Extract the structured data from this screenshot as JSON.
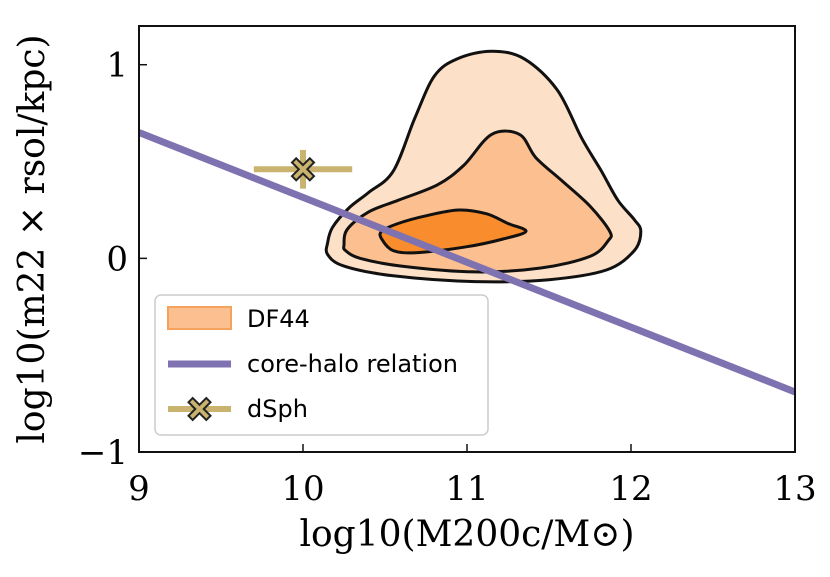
{
  "chart_data": {
    "type": "contour",
    "title": "",
    "xlabel": "log10(M200c/M⊙)",
    "ylabel": "log10(m22 × rsol/kpc)",
    "xlim": [
      9,
      13
    ],
    "ylim": [
      -1,
      1.2
    ],
    "x_ticks": [
      9,
      10,
      11,
      12,
      13
    ],
    "x_tick_labels": [
      "9",
      "10",
      "11",
      "12",
      "13"
    ],
    "y_ticks": [
      -1,
      0,
      1
    ],
    "y_tick_labels": [
      "−1",
      "0",
      "1"
    ],
    "grid": false,
    "legend_position": "lower-left",
    "colors": {
      "contour_outer": "#fde0c8",
      "contour_mid": "#fcbf8f",
      "contour_inner": "#f98c2c",
      "contour_edge": "#111111",
      "relation_line": "#7f72b0",
      "dsph": "#c9b36f"
    },
    "contours": [
      {
        "level": "outer",
        "points": [
          [
            10.15,
            0.08
          ],
          [
            10.18,
            0.16
          ],
          [
            10.28,
            0.26
          ],
          [
            10.4,
            0.34
          ],
          [
            10.55,
            0.45
          ],
          [
            10.68,
            0.72
          ],
          [
            10.8,
            0.94
          ],
          [
            10.94,
            1.03
          ],
          [
            11.15,
            1.07
          ],
          [
            11.35,
            1.03
          ],
          [
            11.55,
            0.87
          ],
          [
            11.7,
            0.62
          ],
          [
            11.82,
            0.45
          ],
          [
            11.92,
            0.3
          ],
          [
            12.02,
            0.2
          ],
          [
            12.06,
            0.14
          ],
          [
            12.02,
            0.04
          ],
          [
            11.85,
            -0.06
          ],
          [
            11.5,
            -0.11
          ],
          [
            11.05,
            -0.12
          ],
          [
            10.55,
            -0.09
          ],
          [
            10.25,
            -0.04
          ],
          [
            10.15,
            0.02
          ]
        ]
      },
      {
        "level": "mid",
        "points": [
          [
            10.25,
            0.07
          ],
          [
            10.27,
            0.15
          ],
          [
            10.4,
            0.24
          ],
          [
            10.58,
            0.3
          ],
          [
            10.82,
            0.38
          ],
          [
            10.98,
            0.48
          ],
          [
            11.15,
            0.64
          ],
          [
            11.32,
            0.64
          ],
          [
            11.42,
            0.52
          ],
          [
            11.58,
            0.4
          ],
          [
            11.75,
            0.27
          ],
          [
            11.87,
            0.14
          ],
          [
            11.86,
            0.09
          ],
          [
            11.75,
            0.01
          ],
          [
            11.45,
            -0.05
          ],
          [
            11.05,
            -0.07
          ],
          [
            10.6,
            -0.04
          ],
          [
            10.35,
            0.0
          ],
          [
            10.26,
            0.04
          ]
        ]
      },
      {
        "level": "inner",
        "points": [
          [
            10.48,
            0.14
          ],
          [
            10.58,
            0.18
          ],
          [
            10.75,
            0.22
          ],
          [
            10.95,
            0.25
          ],
          [
            11.12,
            0.23
          ],
          [
            11.25,
            0.18
          ],
          [
            11.36,
            0.14
          ],
          [
            11.22,
            0.1
          ],
          [
            11.0,
            0.06
          ],
          [
            10.7,
            0.03
          ],
          [
            10.55,
            0.04
          ],
          [
            10.48,
            0.1
          ]
        ]
      }
    ],
    "series": [
      {
        "name": "core-halo relation",
        "type": "line",
        "x": [
          9,
          13
        ],
        "y": [
          0.65,
          -0.69
        ]
      },
      {
        "name": "dSph",
        "type": "errorbar",
        "x": 10.0,
        "y": 0.46,
        "xerr": 0.3,
        "yerr": 0.1
      }
    ],
    "legend": [
      {
        "label": "DF44",
        "marker": "patch"
      },
      {
        "label": "core-halo relation",
        "marker": "line"
      },
      {
        "label": "dSph",
        "marker": "errorbar-x"
      }
    ]
  }
}
